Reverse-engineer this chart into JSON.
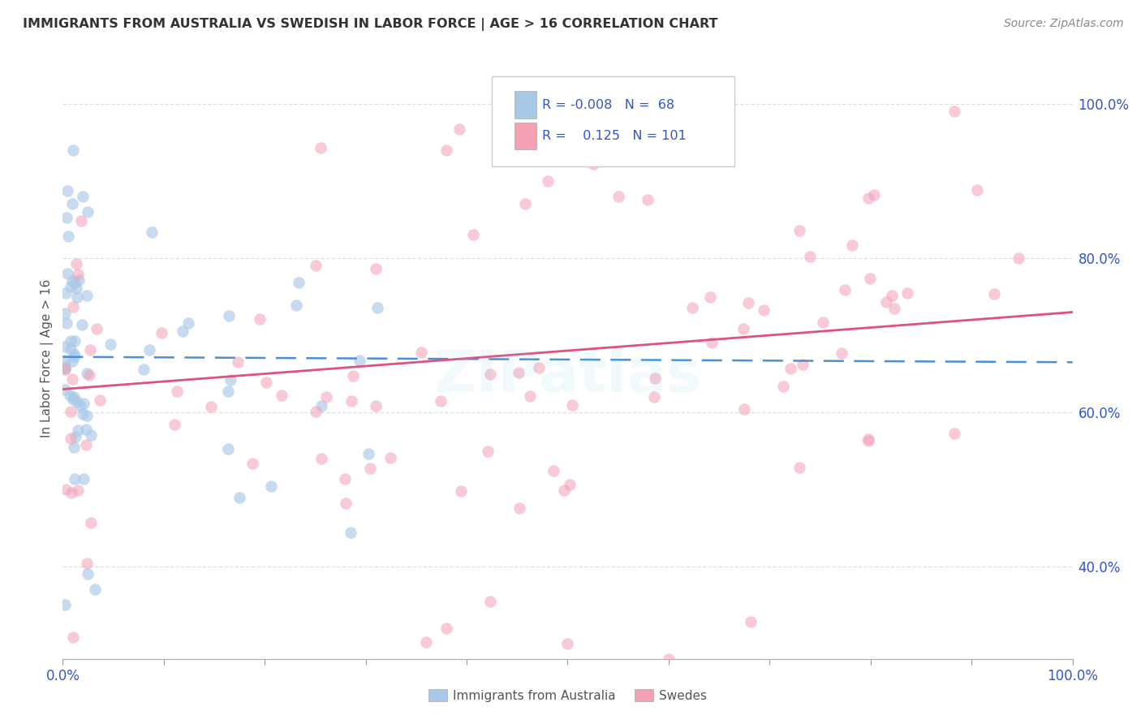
{
  "title": "IMMIGRANTS FROM AUSTRALIA VS SWEDISH IN LABOR FORCE | AGE > 16 CORRELATION CHART",
  "source": "Source: ZipAtlas.com",
  "ylabel": "In Labor Force | Age > 16",
  "legend_labels": [
    "Immigrants from Australia",
    "Swedes"
  ],
  "r_values": [
    -0.008,
    0.125
  ],
  "n_values": [
    68,
    101
  ],
  "blue_color": "#a8c8e8",
  "pink_color": "#f4a0b5",
  "blue_line_color": "#4a90d9",
  "pink_line_color": "#e05080",
  "title_color": "#333333",
  "source_color": "#888888",
  "legend_text_color": "#3355cc",
  "axis_color": "#3355cc",
  "xmin": 0.0,
  "xmax": 1.0,
  "ymin": 0.28,
  "ymax": 1.06,
  "right_yticks": [
    0.4,
    0.6,
    0.8,
    1.0
  ],
  "right_yticklabels": [
    "40.0%",
    "60.0%",
    "80.0%",
    "100.0%"
  ],
  "background_color": "#ffffff",
  "grid_color": "#d8d8d8",
  "watermark_text": "ZIPatlas",
  "watermark_alpha": 0.12,
  "blue_trend_start": 0.672,
  "blue_trend_end": 0.665,
  "pink_trend_start": 0.63,
  "pink_trend_end": 0.73
}
